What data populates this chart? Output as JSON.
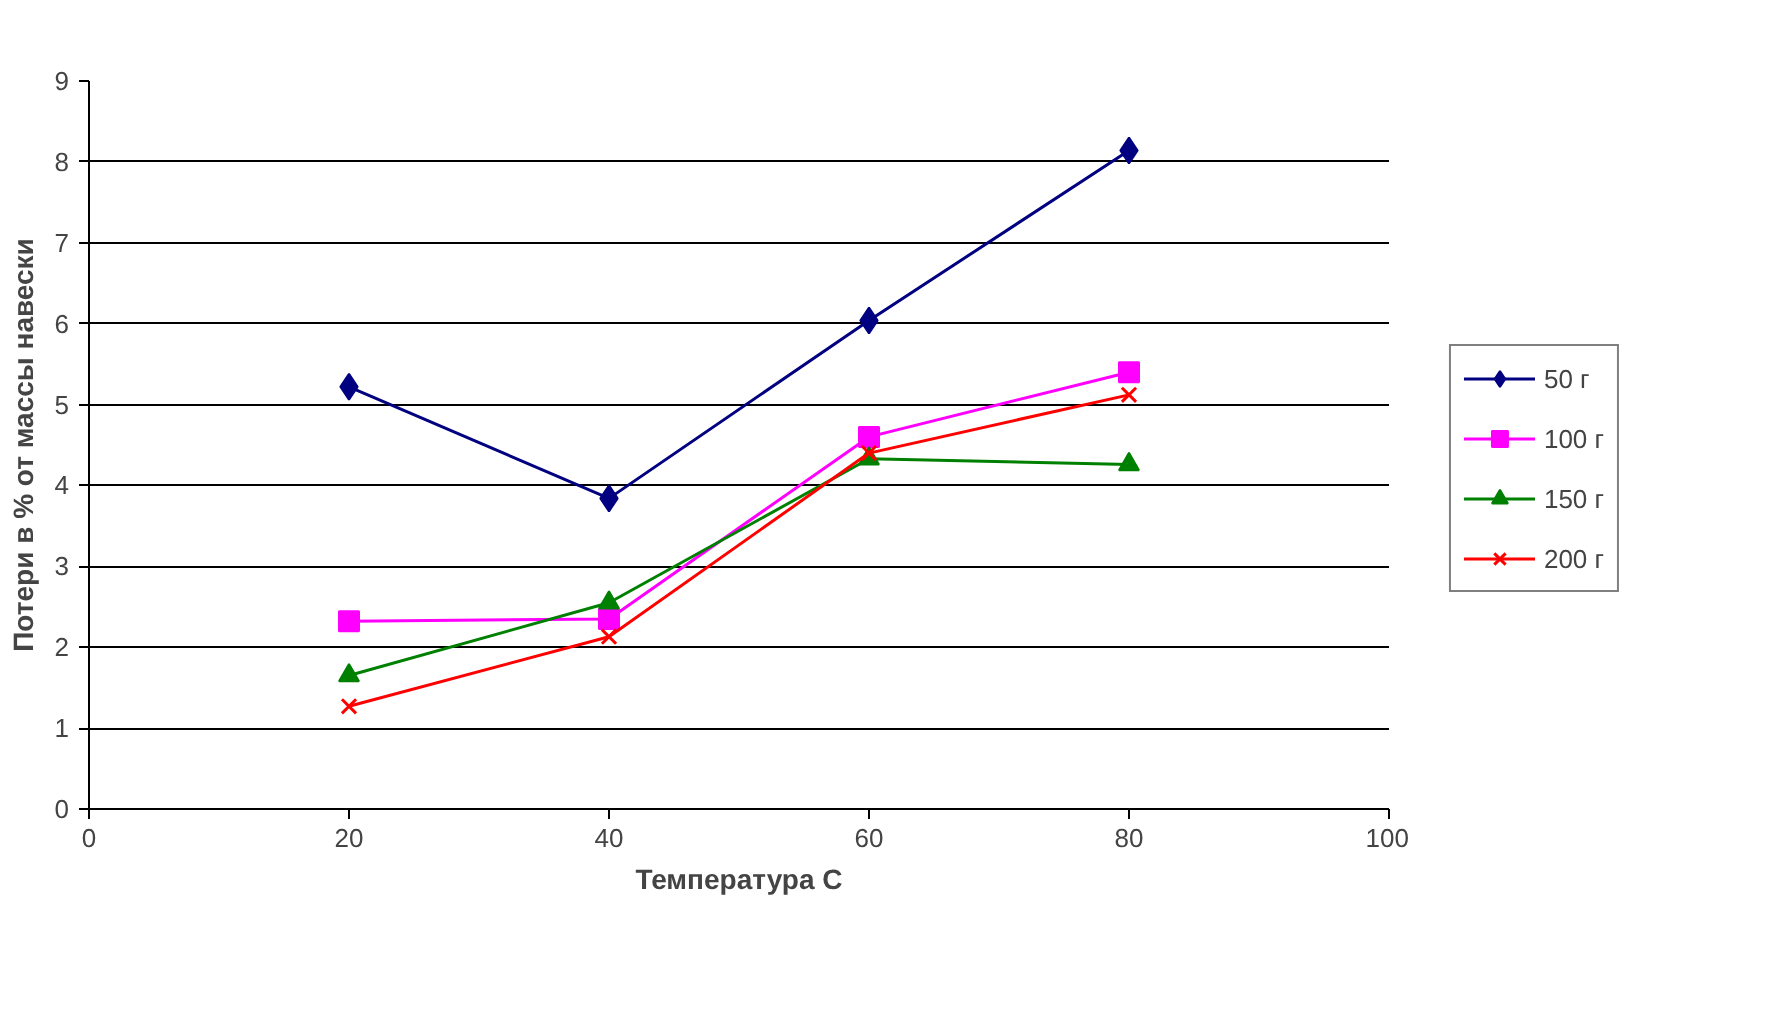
{
  "chart_data": {
    "type": "line",
    "xlabel": "Температура С",
    "ylabel": "Потери в % от массы навески",
    "x": [
      20,
      40,
      60,
      80
    ],
    "series": [
      {
        "name": "50 г",
        "color": "#000080",
        "marker": "diamond",
        "values": [
          5.22,
          3.84,
          6.04,
          8.14
        ]
      },
      {
        "name": "100 г",
        "color": "#ff00ff",
        "marker": "square",
        "values": [
          2.32,
          2.35,
          4.6,
          5.4
        ]
      },
      {
        "name": "150 г",
        "color": "#008000",
        "marker": "triangle",
        "values": [
          1.65,
          2.55,
          4.33,
          4.26
        ]
      },
      {
        "name": "200 г",
        "color": "#ff0000",
        "marker": "cross",
        "values": [
          1.27,
          2.13,
          4.4,
          5.12
        ]
      }
    ],
    "xlim": [
      0,
      100
    ],
    "xticks": [
      0,
      20,
      40,
      60,
      80,
      100
    ],
    "ylim": [
      0,
      9
    ],
    "yticks": [
      0,
      1,
      2,
      3,
      4,
      5,
      6,
      7,
      8,
      9
    ],
    "grid": "y",
    "legend": "right",
    "line_style": "solid"
  }
}
